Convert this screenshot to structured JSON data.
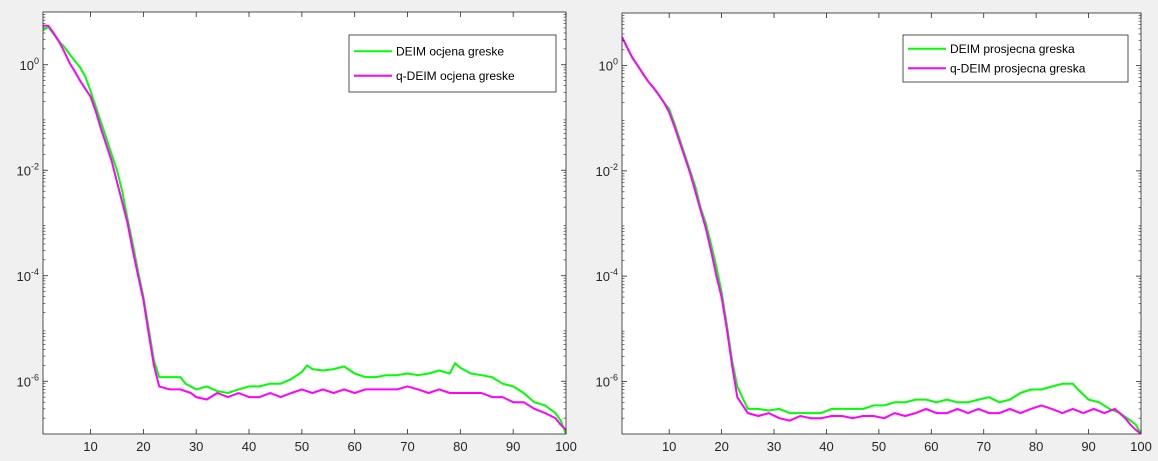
{
  "chart_data": [
    {
      "type": "line",
      "title": "",
      "xlabel": "",
      "ylabel": "",
      "yscale": "log",
      "xlim": [
        1,
        100
      ],
      "ylim": [
        1e-07,
        10
      ],
      "xticks": [
        10,
        20,
        30,
        40,
        50,
        60,
        70,
        80,
        90,
        100
      ],
      "xtick_labels": [
        "10",
        "20",
        "30",
        "40",
        "50",
        "60",
        "70",
        "80",
        "90",
        "100"
      ],
      "yticks": [
        1,
        0.01,
        0.0001,
        1e-06
      ],
      "ytick_labels": [
        {
          "base": "10",
          "exp": "0"
        },
        {
          "base": "10",
          "exp": "-2"
        },
        {
          "base": "10",
          "exp": "-4"
        },
        {
          "base": "10",
          "exp": "-6"
        }
      ],
      "grid": false,
      "legend_position": "top-right",
      "series": [
        {
          "name": "DEIM ocjena greske",
          "color": "#00ff00",
          "points": [
            [
              1,
              4.5
            ],
            [
              2,
              5.2
            ],
            [
              3,
              3.8
            ],
            [
              4,
              2.8
            ],
            [
              5,
              2.2
            ],
            [
              6,
              1.6
            ],
            [
              7,
              1.2
            ],
            [
              8,
              0.9
            ],
            [
              9,
              0.6
            ],
            [
              10,
              0.32
            ],
            [
              11,
              0.16
            ],
            [
              12,
              0.08
            ],
            [
              13,
              0.04
            ],
            [
              14,
              0.02
            ],
            [
              15,
              0.01
            ],
            [
              16,
              0.004
            ],
            [
              17,
              0.0012
            ],
            [
              18,
              0.0004
            ],
            [
              19,
              0.00012
            ],
            [
              20,
              4e-05
            ],
            [
              21,
              1e-05
            ],
            [
              22,
              2.5e-06
            ],
            [
              23,
              1.2e-06
            ],
            [
              25,
              1.2e-06
            ],
            [
              27,
              1.2e-06
            ],
            [
              28,
              9e-07
            ],
            [
              30,
              7e-07
            ],
            [
              32,
              8e-07
            ],
            [
              34,
              6.5e-07
            ],
            [
              36,
              6e-07
            ],
            [
              38,
              7e-07
            ],
            [
              40,
              8e-07
            ],
            [
              42,
              8e-07
            ],
            [
              44,
              9e-07
            ],
            [
              46,
              9e-07
            ],
            [
              48,
              1.1e-06
            ],
            [
              50,
              1.5e-06
            ],
            [
              51,
              2e-06
            ],
            [
              52,
              1.7e-06
            ],
            [
              54,
              1.6e-06
            ],
            [
              56,
              1.7e-06
            ],
            [
              58,
              1.9e-06
            ],
            [
              60,
              1.4e-06
            ],
            [
              62,
              1.2e-06
            ],
            [
              64,
              1.2e-06
            ],
            [
              66,
              1.3e-06
            ],
            [
              68,
              1.3e-06
            ],
            [
              70,
              1.4e-06
            ],
            [
              72,
              1.3e-06
            ],
            [
              74,
              1.4e-06
            ],
            [
              76,
              1.6e-06
            ],
            [
              78,
              1.4e-06
            ],
            [
              79,
              2.2e-06
            ],
            [
              80,
              1.8e-06
            ],
            [
              82,
              1.4e-06
            ],
            [
              84,
              1.3e-06
            ],
            [
              86,
              1.2e-06
            ],
            [
              88,
              9e-07
            ],
            [
              90,
              8e-07
            ],
            [
              92,
              6e-07
            ],
            [
              94,
              4e-07
            ],
            [
              96,
              3.5e-07
            ],
            [
              98,
              2.5e-07
            ],
            [
              99,
              1.8e-07
            ],
            [
              100,
              1e-07
            ]
          ]
        },
        {
          "name": "q-DEIM ocjena greske",
          "color": "#ff00ff",
          "points": [
            [
              1,
              5.5
            ],
            [
              2,
              5.5
            ],
            [
              3,
              4
            ],
            [
              4,
              2.8
            ],
            [
              5,
              1.8
            ],
            [
              6,
              1.1
            ],
            [
              7,
              0.75
            ],
            [
              8,
              0.5
            ],
            [
              9,
              0.35
            ],
            [
              10,
              0.25
            ],
            [
              11,
              0.13
            ],
            [
              12,
              0.06
            ],
            [
              13,
              0.03
            ],
            [
              14,
              0.015
            ],
            [
              15,
              0.006
            ],
            [
              16,
              0.0025
            ],
            [
              17,
              0.001
            ],
            [
              18,
              0.0003
            ],
            [
              19,
              0.0001
            ],
            [
              20,
              3.5e-05
            ],
            [
              21,
              8e-06
            ],
            [
              22,
              2e-06
            ],
            [
              23,
              8e-07
            ],
            [
              25,
              7e-07
            ],
            [
              27,
              7e-07
            ],
            [
              29,
              6e-07
            ],
            [
              30,
              5e-07
            ],
            [
              32,
              4.5e-07
            ],
            [
              34,
              6e-07
            ],
            [
              36,
              5e-07
            ],
            [
              38,
              6e-07
            ],
            [
              40,
              5e-07
            ],
            [
              42,
              5e-07
            ],
            [
              44,
              6e-07
            ],
            [
              46,
              5e-07
            ],
            [
              48,
              6e-07
            ],
            [
              50,
              7e-07
            ],
            [
              52,
              6e-07
            ],
            [
              54,
              7e-07
            ],
            [
              56,
              6e-07
            ],
            [
              58,
              7e-07
            ],
            [
              60,
              6e-07
            ],
            [
              62,
              7e-07
            ],
            [
              64,
              7e-07
            ],
            [
              66,
              7e-07
            ],
            [
              68,
              7e-07
            ],
            [
              70,
              8e-07
            ],
            [
              72,
              7e-07
            ],
            [
              74,
              6e-07
            ],
            [
              76,
              7e-07
            ],
            [
              78,
              6e-07
            ],
            [
              80,
              6e-07
            ],
            [
              82,
              6e-07
            ],
            [
              84,
              6e-07
            ],
            [
              86,
              5e-07
            ],
            [
              88,
              5e-07
            ],
            [
              90,
              4e-07
            ],
            [
              92,
              4e-07
            ],
            [
              94,
              3e-07
            ],
            [
              96,
              2.5e-07
            ],
            [
              98,
              2e-07
            ],
            [
              99,
              1.5e-07
            ],
            [
              100,
              1.2e-07
            ]
          ]
        }
      ]
    },
    {
      "type": "line",
      "title": "",
      "xlabel": "",
      "ylabel": "",
      "yscale": "log",
      "xlim": [
        1,
        100
      ],
      "ylim": [
        1e-07,
        10
      ],
      "xticks": [
        10,
        20,
        30,
        40,
        50,
        60,
        70,
        80,
        90,
        100
      ],
      "xtick_labels": [
        "10",
        "20",
        "30",
        "40",
        "50",
        "60",
        "70",
        "80",
        "90",
        "100"
      ],
      "yticks": [
        1,
        0.01,
        0.0001,
        1e-06
      ],
      "ytick_labels": [
        {
          "base": "10",
          "exp": "0"
        },
        {
          "base": "10",
          "exp": "-2"
        },
        {
          "base": "10",
          "exp": "-4"
        },
        {
          "base": "10",
          "exp": "-6"
        }
      ],
      "grid": false,
      "legend_position": "top-right",
      "series": [
        {
          "name": "DEIM prosjecna greska",
          "color": "#00ff00",
          "points": [
            [
              1,
              3.5
            ],
            [
              2,
              2.2
            ],
            [
              3,
              1.4
            ],
            [
              4,
              1
            ],
            [
              5,
              0.7
            ],
            [
              6,
              0.5
            ],
            [
              7,
              0.38
            ],
            [
              8,
              0.28
            ],
            [
              9,
              0.2
            ],
            [
              10,
              0.15
            ],
            [
              11,
              0.08
            ],
            [
              12,
              0.04
            ],
            [
              13,
              0.02
            ],
            [
              14,
              0.01
            ],
            [
              15,
              0.005
            ],
            [
              16,
              0.002
            ],
            [
              17,
              0.001
            ],
            [
              18,
              0.0004
            ],
            [
              19,
              0.00015
            ],
            [
              20,
              5e-05
            ],
            [
              21,
              1.2e-05
            ],
            [
              22,
              2.5e-06
            ],
            [
              23,
              8e-07
            ],
            [
              25,
              3e-07
            ],
            [
              27,
              3e-07
            ],
            [
              29,
              2.8e-07
            ],
            [
              31,
              3e-07
            ],
            [
              33,
              2.5e-07
            ],
            [
              35,
              2.5e-07
            ],
            [
              37,
              2.5e-07
            ],
            [
              39,
              2.5e-07
            ],
            [
              41,
              3e-07
            ],
            [
              43,
              3e-07
            ],
            [
              45,
              3e-07
            ],
            [
              47,
              3e-07
            ],
            [
              49,
              3.5e-07
            ],
            [
              51,
              3.5e-07
            ],
            [
              53,
              4e-07
            ],
            [
              55,
              4e-07
            ],
            [
              57,
              4.5e-07
            ],
            [
              59,
              4.5e-07
            ],
            [
              61,
              4e-07
            ],
            [
              63,
              4.5e-07
            ],
            [
              65,
              4e-07
            ],
            [
              67,
              4e-07
            ],
            [
              69,
              4.5e-07
            ],
            [
              71,
              5e-07
            ],
            [
              73,
              4e-07
            ],
            [
              75,
              4.5e-07
            ],
            [
              77,
              6e-07
            ],
            [
              79,
              7e-07
            ],
            [
              81,
              7e-07
            ],
            [
              83,
              8e-07
            ],
            [
              85,
              9e-07
            ],
            [
              87,
              9e-07
            ],
            [
              88,
              7e-07
            ],
            [
              90,
              4.5e-07
            ],
            [
              92,
              4e-07
            ],
            [
              94,
              3e-07
            ],
            [
              96,
              2.5e-07
            ],
            [
              98,
              1.8e-07
            ],
            [
              99,
              1.5e-07
            ],
            [
              100,
              1e-07
            ]
          ]
        },
        {
          "name": "q-DEIM prosjecna greska",
          "color": "#ff00ff",
          "points": [
            [
              1,
              3.5
            ],
            [
              2,
              2.2
            ],
            [
              3,
              1.4
            ],
            [
              4,
              1
            ],
            [
              5,
              0.7
            ],
            [
              6,
              0.5
            ],
            [
              7,
              0.38
            ],
            [
              8,
              0.28
            ],
            [
              9,
              0.2
            ],
            [
              10,
              0.13
            ],
            [
              11,
              0.07
            ],
            [
              12,
              0.035
            ],
            [
              13,
              0.018
            ],
            [
              14,
              0.009
            ],
            [
              15,
              0.004
            ],
            [
              16,
              0.0018
            ],
            [
              17,
              0.0008
            ],
            [
              18,
              0.0003
            ],
            [
              19,
              0.0001
            ],
            [
              20,
              4e-05
            ],
            [
              21,
              1e-05
            ],
            [
              22,
              2e-06
            ],
            [
              23,
              5e-07
            ],
            [
              25,
              2.5e-07
            ],
            [
              27,
              2.2e-07
            ],
            [
              29,
              2.5e-07
            ],
            [
              31,
              2e-07
            ],
            [
              33,
              1.8e-07
            ],
            [
              35,
              2.2e-07
            ],
            [
              37,
              2e-07
            ],
            [
              39,
              2e-07
            ],
            [
              41,
              2.2e-07
            ],
            [
              43,
              2.2e-07
            ],
            [
              45,
              2e-07
            ],
            [
              47,
              2.2e-07
            ],
            [
              49,
              2.2e-07
            ],
            [
              51,
              2e-07
            ],
            [
              53,
              2.5e-07
            ],
            [
              55,
              2.2e-07
            ],
            [
              57,
              2.5e-07
            ],
            [
              59,
              3e-07
            ],
            [
              61,
              2.5e-07
            ],
            [
              63,
              2.5e-07
            ],
            [
              65,
              3e-07
            ],
            [
              67,
              2.5e-07
            ],
            [
              69,
              3e-07
            ],
            [
              71,
              2.5e-07
            ],
            [
              73,
              2.5e-07
            ],
            [
              75,
              3e-07
            ],
            [
              77,
              2.5e-07
            ],
            [
              79,
              3e-07
            ],
            [
              81,
              3.5e-07
            ],
            [
              83,
              3e-07
            ],
            [
              85,
              2.5e-07
            ],
            [
              87,
              3e-07
            ],
            [
              89,
              2.5e-07
            ],
            [
              91,
              3e-07
            ],
            [
              93,
              2.5e-07
            ],
            [
              95,
              3e-07
            ],
            [
              97,
              2e-07
            ],
            [
              98,
              1.5e-07
            ],
            [
              99,
              1.2e-07
            ],
            [
              100,
              1e-07
            ]
          ]
        }
      ]
    }
  ]
}
